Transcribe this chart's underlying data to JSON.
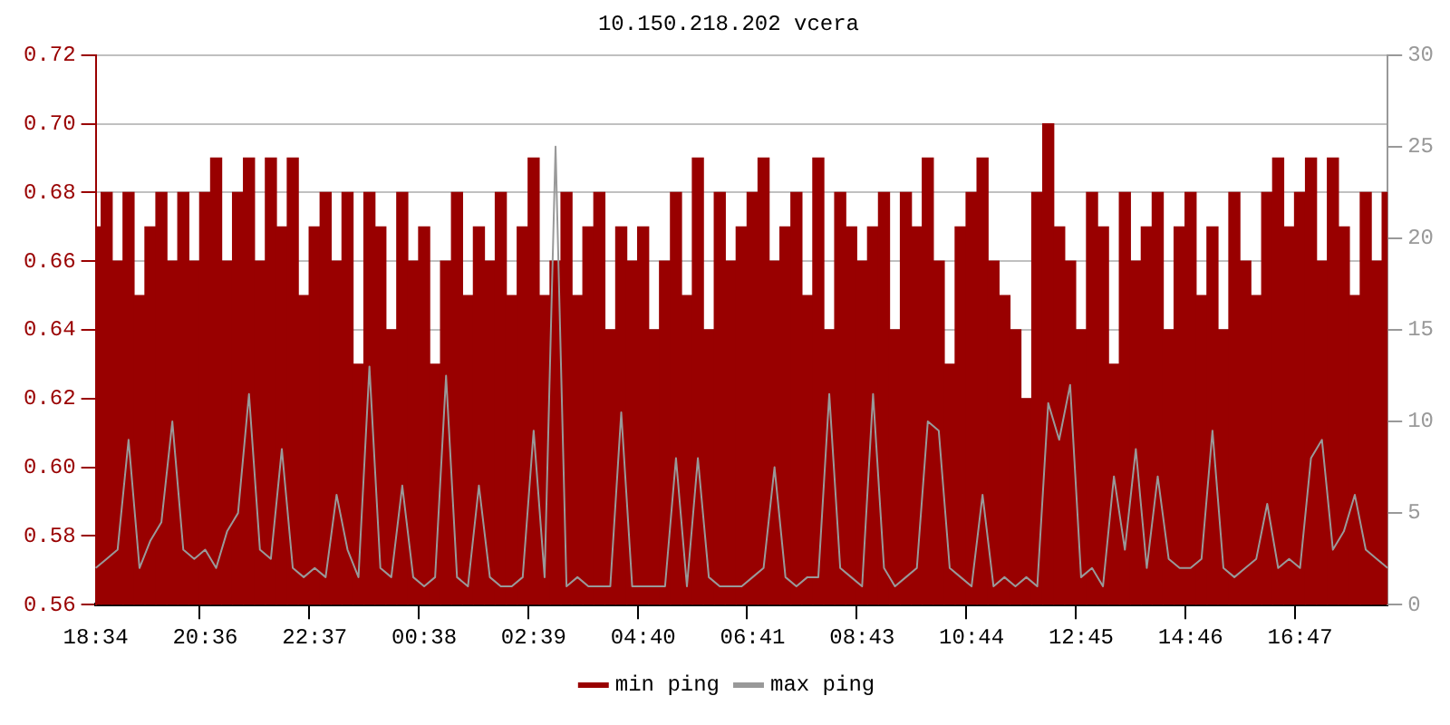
{
  "chart_data": {
    "type": "bar",
    "title": "10.150.218.202 vcera",
    "categories": [
      "18:34",
      null,
      null,
      null,
      null,
      null,
      null,
      null,
      null,
      null,
      "20:36",
      null,
      null,
      null,
      null,
      null,
      null,
      null,
      null,
      null,
      "22:37",
      null,
      null,
      null,
      null,
      null,
      null,
      null,
      null,
      null,
      "00:38",
      null,
      null,
      null,
      null,
      null,
      null,
      null,
      null,
      null,
      "02:39",
      null,
      null,
      null,
      null,
      null,
      null,
      null,
      null,
      null,
      "04:40",
      null,
      null,
      null,
      null,
      null,
      null,
      null,
      null,
      null,
      "06:41",
      null,
      null,
      null,
      null,
      null,
      null,
      null,
      null,
      null,
      "08:43",
      null,
      null,
      null,
      null,
      null,
      null,
      null,
      null,
      null,
      "10:44",
      null,
      null,
      null,
      null,
      null,
      null,
      null,
      null,
      null,
      "12:45",
      null,
      null,
      null,
      null,
      null,
      null,
      null,
      null,
      null,
      "14:46",
      null,
      null,
      null,
      null,
      null,
      null,
      null,
      null,
      null,
      "16:47",
      null,
      null,
      null,
      null,
      null,
      null,
      null,
      null
    ],
    "series": [
      {
        "name": "min ping",
        "color": "#990000",
        "values": [
          0.67,
          0.68,
          0.66,
          0.68,
          0.65,
          0.67,
          0.68,
          0.66,
          0.68,
          0.66,
          0.68,
          0.69,
          0.66,
          0.68,
          0.69,
          0.66,
          0.69,
          0.67,
          0.69,
          0.65,
          0.67,
          0.68,
          0.66,
          0.68,
          0.63,
          0.68,
          0.67,
          0.64,
          0.68,
          0.66,
          0.67,
          0.63,
          0.66,
          0.68,
          0.65,
          0.67,
          0.66,
          0.68,
          0.65,
          0.67,
          0.69,
          0.65,
          0.66,
          0.68,
          0.65,
          0.67,
          0.68,
          0.64,
          0.67,
          0.66,
          0.67,
          0.64,
          0.66,
          0.68,
          0.65,
          0.69,
          0.64,
          0.68,
          0.66,
          0.67,
          0.68,
          0.69,
          0.66,
          0.67,
          0.68,
          0.65,
          0.69,
          0.64,
          0.68,
          0.67,
          0.66,
          0.67,
          0.68,
          0.64,
          0.68,
          0.67,
          0.69,
          0.66,
          0.63,
          0.67,
          0.68,
          0.69,
          0.66,
          0.65,
          0.64,
          0.62,
          0.68,
          0.7,
          0.67,
          0.66,
          0.64,
          0.68,
          0.67,
          0.63,
          0.68,
          0.66,
          0.67,
          0.68,
          0.64,
          0.67,
          0.68,
          0.65,
          0.67,
          0.64,
          0.68,
          0.66,
          0.65,
          0.68,
          0.69,
          0.67,
          0.68,
          0.69,
          0.66,
          0.69,
          0.67,
          0.65,
          0.68,
          0.66,
          0.68
        ]
      },
      {
        "name": "max ping",
        "type": "line",
        "axis": "y2",
        "color": "#999999",
        "values": [
          2,
          2.5,
          3,
          9,
          2,
          3.5,
          4.5,
          10,
          3,
          2.5,
          3,
          2,
          4,
          5,
          11.5,
          3,
          2.5,
          8.5,
          2,
          1.5,
          2,
          1.5,
          6,
          3,
          1.5,
          13,
          2,
          1.5,
          6.5,
          1.5,
          1,
          1.5,
          12.5,
          1.5,
          1,
          6.5,
          1.5,
          1,
          1,
          1.5,
          9.5,
          1.5,
          25,
          1,
          1.5,
          1,
          1,
          1,
          10.5,
          1,
          1,
          1,
          1,
          8,
          1,
          8,
          1.5,
          1,
          1,
          1,
          1.5,
          2,
          7.5,
          1.5,
          1,
          1.5,
          1.5,
          11.5,
          2,
          1.5,
          1,
          11.5,
          2,
          1,
          1.5,
          2,
          10,
          9.5,
          2,
          1.5,
          1,
          6,
          1,
          1.5,
          1,
          1.5,
          1,
          11,
          9,
          12,
          1.5,
          2,
          1,
          7,
          3,
          8.5,
          2,
          7,
          2.5,
          2,
          2,
          2.5,
          9.5,
          2,
          1.5,
          2,
          2.5,
          5.5,
          2,
          2.5,
          2,
          8,
          9,
          3,
          4,
          6,
          3,
          2.5,
          2
        ]
      }
    ],
    "ylim": [
      0.56,
      0.72
    ],
    "yticks": [
      {
        "value": 0.56,
        "label": "0.56"
      },
      {
        "value": 0.58,
        "label": "0.58"
      },
      {
        "value": 0.6,
        "label": "0.60"
      },
      {
        "value": 0.62,
        "label": "0.62"
      },
      {
        "value": 0.64,
        "label": "0.64"
      },
      {
        "value": 0.66,
        "label": "0.66"
      },
      {
        "value": 0.68,
        "label": "0.68"
      },
      {
        "value": 0.7,
        "label": "0.70"
      },
      {
        "value": 0.72,
        "label": "0.72"
      }
    ],
    "y2lim": [
      0,
      30
    ],
    "y2ticks": [
      0,
      5,
      10,
      15,
      20,
      25,
      30
    ],
    "grid": "y",
    "legend": "bottom",
    "marker": "none"
  }
}
